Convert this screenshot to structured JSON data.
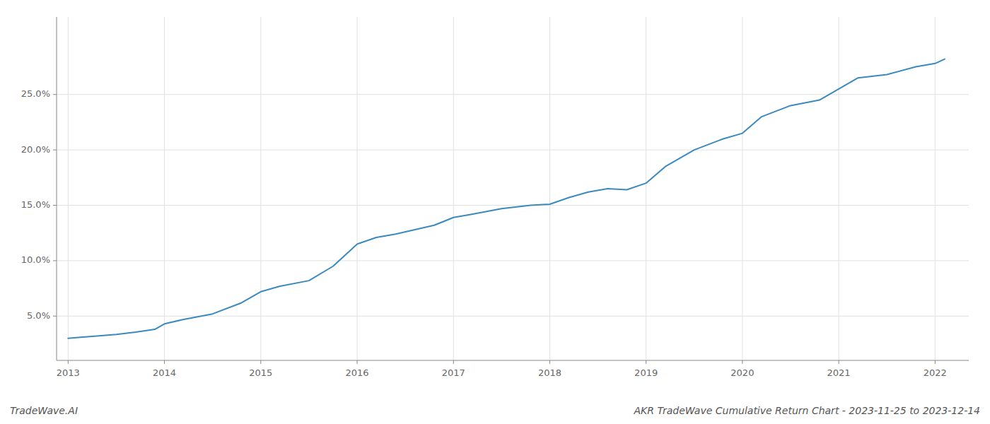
{
  "chart_data": {
    "type": "line",
    "title": "AKR TradeWave Cumulative Return Chart - 2023-11-25 to 2023-12-14",
    "annotations": [
      "TradeWave.AI"
    ],
    "x": [
      2013.0,
      2013.15,
      2013.3,
      2013.5,
      2013.7,
      2013.9,
      2014.0,
      2014.2,
      2014.5,
      2014.8,
      2015.0,
      2015.2,
      2015.5,
      2015.75,
      2016.0,
      2016.2,
      2016.4,
      2016.6,
      2016.8,
      2017.0,
      2017.2,
      2017.5,
      2017.8,
      2018.0,
      2018.2,
      2018.4,
      2018.6,
      2018.8,
      2019.0,
      2019.2,
      2019.5,
      2019.8,
      2020.0,
      2020.2,
      2020.5,
      2020.8,
      2021.0,
      2021.2,
      2021.5,
      2021.8,
      2022.0,
      2022.1
    ],
    "values": [
      3.0,
      3.1,
      3.2,
      3.35,
      3.55,
      3.8,
      4.3,
      4.7,
      5.2,
      6.2,
      7.2,
      7.7,
      8.2,
      9.5,
      11.5,
      12.1,
      12.4,
      12.8,
      13.2,
      13.9,
      14.2,
      14.7,
      15.0,
      15.1,
      15.7,
      16.2,
      16.5,
      16.4,
      17.0,
      18.5,
      20.0,
      21.0,
      21.5,
      23.0,
      24.0,
      24.5,
      25.5,
      26.5,
      26.8,
      27.5,
      27.8,
      28.2
    ],
    "color": "#3a8abf",
    "xlim": [
      2012.88,
      2022.35
    ],
    "ylim": [
      1.0,
      32.0
    ],
    "xticks": [
      2013,
      2014,
      2015,
      2016,
      2017,
      2018,
      2019,
      2020,
      2021,
      2022
    ],
    "yticks": [
      {
        "value": 5.0,
        "label": "5.0%"
      },
      {
        "value": 10.0,
        "label": "10.0%"
      },
      {
        "value": 15.0,
        "label": "15.0%"
      },
      {
        "value": 20.0,
        "label": "20.0%"
      },
      {
        "value": 25.0,
        "label": "25.0%"
      }
    ],
    "grid": true
  }
}
